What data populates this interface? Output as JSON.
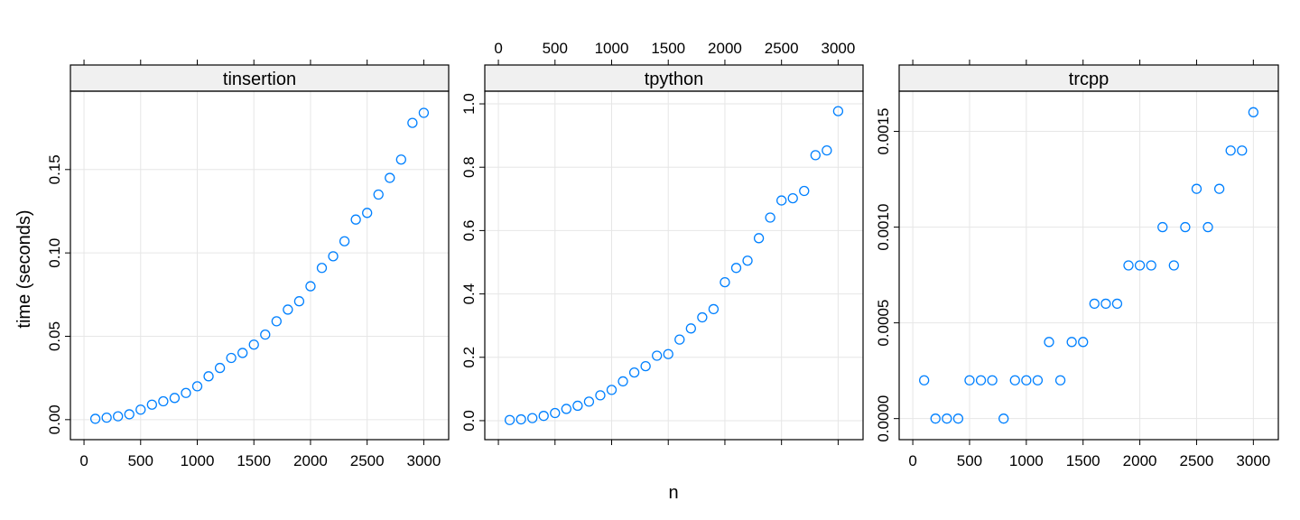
{
  "chart_data": {
    "type": "scatter",
    "xlabel": "n",
    "ylabel": "time (seconds)",
    "grid": true,
    "point_color": "#0080ff",
    "strip_color": "#f0f0f0",
    "x_ticks": [
      0,
      500,
      1000,
      1500,
      2000,
      2500,
      3000
    ],
    "x_tick_labels": [
      "0",
      "500",
      "1000",
      "1500",
      "2000",
      "2500",
      "3000"
    ],
    "x": [
      100,
      200,
      300,
      400,
      500,
      600,
      700,
      800,
      900,
      1000,
      1100,
      1200,
      1300,
      1400,
      1500,
      1600,
      1700,
      1800,
      1900,
      2000,
      2100,
      2200,
      2300,
      2400,
      2500,
      2600,
      2700,
      2800,
      2900,
      3000
    ],
    "panels": [
      {
        "title": "tinsertion",
        "xlim": [
          -120,
          3220
        ],
        "ylim": [
          -0.012,
          0.197
        ],
        "y_ticks": [
          0,
          0.05,
          0.1,
          0.15
        ],
        "y_tick_labels": [
          "0.00",
          "0.05",
          "0.10",
          "0.15"
        ],
        "y_axis_side": "left",
        "x_axis_side": "bottom",
        "values": [
          0.0005,
          0.0012,
          0.002,
          0.0032,
          0.006,
          0.009,
          0.011,
          0.013,
          0.016,
          0.02,
          0.026,
          0.031,
          0.037,
          0.04,
          0.045,
          0.051,
          0.059,
          0.066,
          0.071,
          0.08,
          0.091,
          0.098,
          0.107,
          0.12,
          0.124,
          0.135,
          0.145,
          0.156,
          0.178,
          0.184
        ]
      },
      {
        "title": "tpython",
        "xlim": [
          -120,
          3220
        ],
        "ylim": [
          -0.06,
          1.04
        ],
        "y_ticks": [
          0,
          0.2,
          0.4,
          0.6,
          0.8,
          1.0
        ],
        "y_tick_labels": [
          "0.0",
          "0.2",
          "0.4",
          "0.6",
          "0.8",
          "1.0"
        ],
        "y_axis_side": "left",
        "x_axis_side": "top",
        "values": [
          0.002,
          0.004,
          0.008,
          0.015,
          0.024,
          0.037,
          0.047,
          0.06,
          0.08,
          0.097,
          0.124,
          0.152,
          0.172,
          0.205,
          0.21,
          0.256,
          0.291,
          0.326,
          0.352,
          0.437,
          0.482,
          0.505,
          0.576,
          0.641,
          0.695,
          0.702,
          0.725,
          0.838,
          0.853,
          0.977
        ]
      },
      {
        "title": "trcpp",
        "xlim": [
          -120,
          3220
        ],
        "ylim": [
          -0.00011,
          0.00171
        ],
        "y_ticks": [
          0,
          0.0005,
          0.001,
          0.0015
        ],
        "y_tick_labels": [
          "0.0000",
          "0.0005",
          "0.0010",
          "0.0015"
        ],
        "y_axis_side": "left",
        "x_axis_side": "bottom",
        "values": [
          0.0002,
          0.0,
          0.0,
          0.0,
          0.0002,
          0.0002,
          0.0002,
          0.0,
          0.0002,
          0.0002,
          0.0002,
          0.0004,
          0.0002,
          0.0004,
          0.0004,
          0.0006,
          0.0006,
          0.0006,
          0.0008,
          0.0008,
          0.0008,
          0.001,
          0.0008,
          0.001,
          0.0012,
          0.001,
          0.0012,
          0.0014,
          0.0014,
          0.0016
        ]
      }
    ]
  }
}
